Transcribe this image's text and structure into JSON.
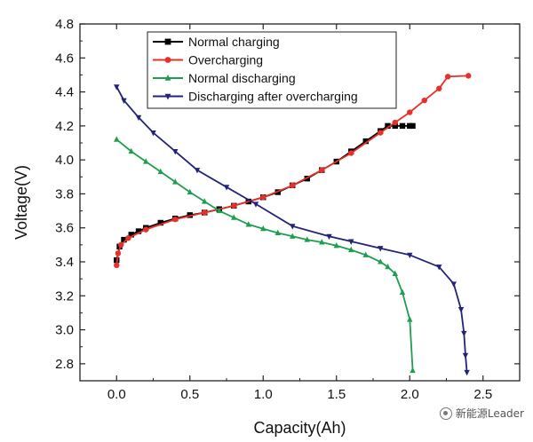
{
  "chart_data": {
    "type": "line",
    "title": "",
    "xlabel": "Capacity(Ah)",
    "ylabel": "Voltage(V)",
    "xlim": [
      -0.25,
      2.75
    ],
    "ylim": [
      2.7,
      4.8
    ],
    "x_ticks": [
      0.0,
      0.5,
      1.0,
      1.5,
      2.0,
      2.5
    ],
    "x_tick_labels": [
      "0.0",
      "0.5",
      "1.0",
      "1.5",
      "2.0",
      "2.5"
    ],
    "y_ticks": [
      2.8,
      3.0,
      3.2,
      3.4,
      3.6,
      3.8,
      4.0,
      4.2,
      4.4,
      4.6,
      4.8
    ],
    "y_tick_labels": [
      "2.8",
      "3.0",
      "3.2",
      "3.4",
      "3.6",
      "3.8",
      "4.0",
      "4.2",
      "4.4",
      "4.6",
      "4.8"
    ],
    "grid": false,
    "legend_position": "top-center",
    "series": [
      {
        "name": "Normal charging",
        "color": "#000000",
        "marker": "square",
        "x": [
          0.0,
          0.02,
          0.05,
          0.1,
          0.15,
          0.2,
          0.3,
          0.4,
          0.5,
          0.6,
          0.7,
          0.8,
          0.9,
          1.0,
          1.1,
          1.2,
          1.3,
          1.4,
          1.5,
          1.6,
          1.7,
          1.8,
          1.85,
          1.9,
          1.95,
          2.0,
          2.02
        ],
        "y": [
          3.41,
          3.49,
          3.53,
          3.56,
          3.58,
          3.6,
          3.63,
          3.655,
          3.675,
          3.69,
          3.71,
          3.73,
          3.755,
          3.78,
          3.81,
          3.85,
          3.89,
          3.94,
          3.99,
          4.05,
          4.11,
          4.17,
          4.2,
          4.2,
          4.2,
          4.2,
          4.2
        ]
      },
      {
        "name": "Overcharging",
        "color": "#e8302a",
        "marker": "circle",
        "x": [
          0.0,
          0.01,
          0.03,
          0.08,
          0.2,
          0.4,
          0.6,
          0.8,
          1.0,
          1.2,
          1.4,
          1.6,
          1.8,
          1.9,
          2.0,
          2.1,
          2.2,
          2.26,
          2.4
        ],
        "y": [
          3.38,
          3.45,
          3.5,
          3.54,
          3.59,
          3.65,
          3.69,
          3.73,
          3.78,
          3.85,
          3.94,
          4.04,
          4.16,
          4.22,
          4.28,
          4.35,
          4.42,
          4.49,
          4.495
        ]
      },
      {
        "name": "Normal discharging",
        "color": "#1f9e50",
        "marker": "triangle-up",
        "x": [
          0.0,
          0.1,
          0.2,
          0.3,
          0.4,
          0.5,
          0.6,
          0.7,
          0.8,
          0.9,
          1.0,
          1.1,
          1.2,
          1.3,
          1.4,
          1.5,
          1.6,
          1.7,
          1.8,
          1.85,
          1.9,
          1.95,
          2.0,
          2.02
        ],
        "y": [
          4.12,
          4.05,
          3.99,
          3.93,
          3.87,
          3.81,
          3.755,
          3.7,
          3.66,
          3.62,
          3.595,
          3.57,
          3.55,
          3.53,
          3.515,
          3.495,
          3.47,
          3.44,
          3.4,
          3.37,
          3.33,
          3.22,
          3.06,
          2.76
        ]
      },
      {
        "name": "Discharging after overcharging",
        "color": "#232377",
        "marker": "triangle-down",
        "x": [
          0.0,
          0.05,
          0.15,
          0.25,
          0.4,
          0.55,
          0.75,
          0.95,
          1.2,
          1.45,
          1.6,
          1.8,
          2.0,
          2.2,
          2.3,
          2.35,
          2.37,
          2.38,
          2.39
        ],
        "y": [
          4.43,
          4.35,
          4.25,
          4.16,
          4.05,
          3.94,
          3.84,
          3.74,
          3.61,
          3.55,
          3.52,
          3.48,
          3.44,
          3.37,
          3.27,
          3.12,
          2.98,
          2.85,
          2.75
        ]
      }
    ]
  },
  "watermark": {
    "text": "新能源Leader"
  }
}
